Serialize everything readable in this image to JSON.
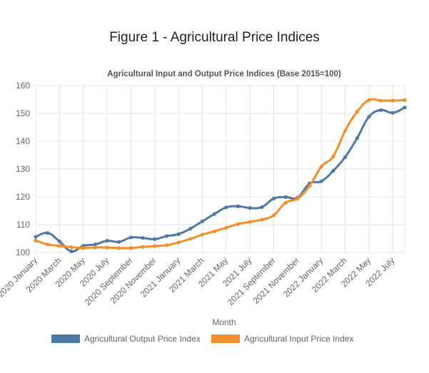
{
  "figure_title": "Figure 1 - Agricultural Price Indices",
  "chart_data": {
    "type": "line",
    "title": "Agricultural Input and Output Price Indices (Base 2015=100)",
    "xlabel": "Month",
    "ylabel": "",
    "ylim": [
      100,
      160
    ],
    "yticks": [
      100,
      110,
      120,
      130,
      140,
      150,
      160
    ],
    "grid": true,
    "legend_position": "bottom",
    "x_tick_labels": [
      "2020 January",
      "2020 March",
      "2020 May",
      "2020 July",
      "2020 September",
      "2020 November",
      "2021 January",
      "2021 March",
      "2021 May",
      "2021 July",
      "2021 September",
      "2021 November",
      "2022 January",
      "2022 March",
      "2022 May",
      "2022 July"
    ],
    "x": [
      "2020 January",
      "2020 February",
      "2020 March",
      "2020 April",
      "2020 May",
      "2020 June",
      "2020 July",
      "2020 August",
      "2020 September",
      "2020 October",
      "2020 November",
      "2020 December",
      "2021 January",
      "2021 February",
      "2021 March",
      "2021 April",
      "2021 May",
      "2021 June",
      "2021 July",
      "2021 August",
      "2021 September",
      "2021 October",
      "2021 November",
      "2021 December",
      "2022 January",
      "2022 February",
      "2022 March",
      "2022 April",
      "2022 May",
      "2022 June",
      "2022 July",
      "2022 August"
    ],
    "series": [
      {
        "name": "Agricultural Output Price Index",
        "color": "#4e79a7",
        "values": [
          105.6,
          107.0,
          104.0,
          100.4,
          102.4,
          102.9,
          104.2,
          103.8,
          105.4,
          105.2,
          104.8,
          105.9,
          106.6,
          108.6,
          111.2,
          113.8,
          116.2,
          116.6,
          116.0,
          116.3,
          119.4,
          119.9,
          119.7,
          124.8,
          125.6,
          129.4,
          134.3,
          141.1,
          148.8,
          151.2,
          150.2,
          152.1
        ]
      },
      {
        "name": "Agricultural Input Price Index",
        "color": "#f28e2b",
        "values": [
          104.3,
          102.9,
          102.4,
          101.9,
          101.6,
          101.8,
          101.8,
          101.6,
          101.6,
          102.0,
          102.3,
          102.6,
          103.6,
          104.9,
          106.4,
          107.6,
          108.9,
          110.2,
          111.0,
          111.8,
          113.4,
          117.9,
          119.4,
          123.9,
          130.9,
          134.6,
          143.8,
          150.6,
          154.8,
          154.6,
          154.6,
          154.8
        ]
      }
    ]
  }
}
